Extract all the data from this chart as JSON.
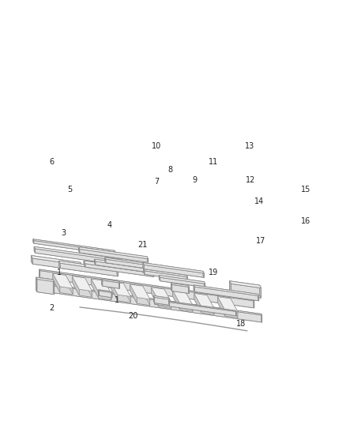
{
  "figure_width": 4.38,
  "figure_height": 5.33,
  "dpi": 100,
  "bg_color": "#ffffff",
  "ec": "#888888",
  "lw": 0.6,
  "lw_thin": 0.4,
  "label_fs": 7,
  "label_color": "#222222"
}
